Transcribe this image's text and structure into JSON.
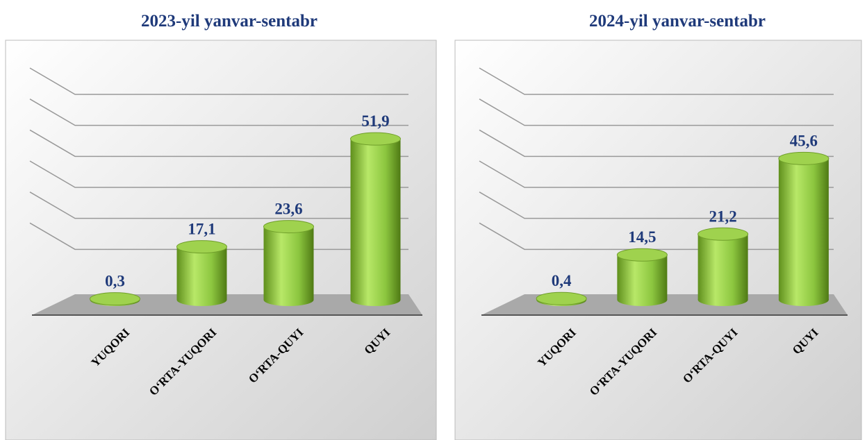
{
  "chart_data": [
    {
      "type": "bar",
      "title": "2023-yil yanvar-sentabr",
      "categories": [
        "YUQORI",
        "O‘RTA-YUQORI",
        "O‘RTA-QUYI",
        "QUYI"
      ],
      "values": [
        0.3,
        17.1,
        23.6,
        51.9
      ],
      "value_labels": [
        "0,3",
        "17,1",
        "23,6",
        "51,9"
      ],
      "color": "#8cc63f",
      "ylim": [
        0,
        60
      ],
      "yticks": [
        0,
        10,
        20,
        30,
        40,
        50,
        60
      ],
      "grid": true
    },
    {
      "type": "bar",
      "title": "2024-yil yanvar-sentabr",
      "categories": [
        "YUQORI",
        "O‘RTA-YUQORI",
        "O‘RTA-QUYI",
        "QUYI"
      ],
      "values": [
        0.4,
        14.5,
        21.2,
        45.6
      ],
      "value_labels": [
        "0,4",
        "14,5",
        "21,2",
        "45,6"
      ],
      "color": "#8cc63f",
      "ylim": [
        0,
        60
      ],
      "yticks": [
        0,
        10,
        20,
        30,
        40,
        50,
        60
      ],
      "grid": true
    }
  ]
}
